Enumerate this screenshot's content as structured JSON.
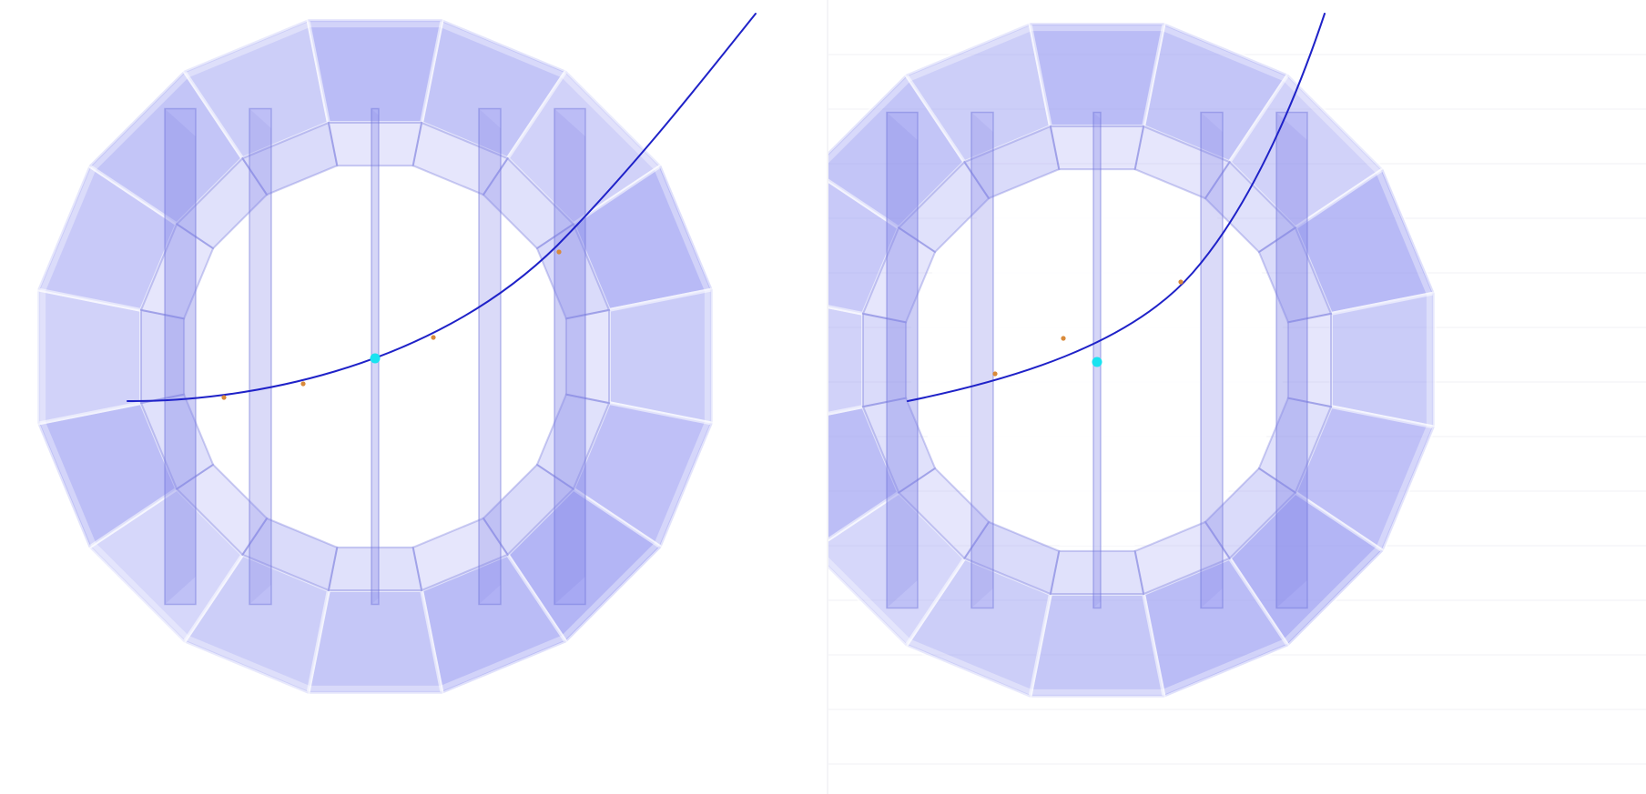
{
  "colors": {
    "background": "#ffffff",
    "detector_fill": "#8c8ff0",
    "detector_edge": "#6f73d9",
    "track": "#1f22c8",
    "hit": "#d98a3a",
    "vertex": "#19e3f0"
  },
  "views": [
    {
      "name": "left-view",
      "track": "curved-track",
      "hits": 4,
      "vertex": "interaction-point"
    },
    {
      "name": "right-view",
      "track": "curved-track",
      "hits": 3,
      "vertex": "interaction-point"
    }
  ]
}
